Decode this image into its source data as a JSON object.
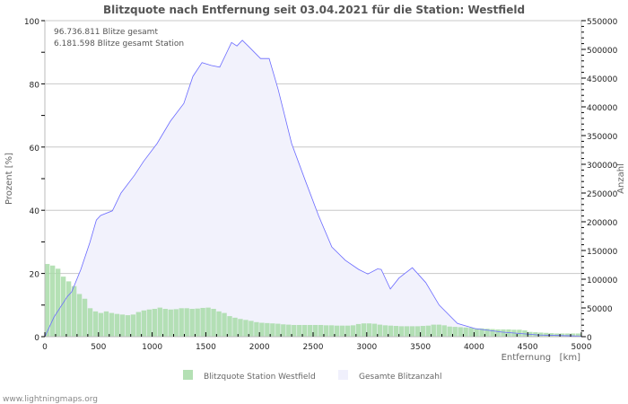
{
  "chart_data": {
    "type": "bar",
    "title": "Blitzquote nach Entfernung seit 03.04.2021 für die Station: Westfield",
    "xlabel": "Entfernung   [km]",
    "ylabel": "Prozent   [%]",
    "ylabel_right": "Anzahl",
    "xlim": [
      0,
      5000
    ],
    "ylim": [
      0,
      100
    ],
    "ylim_right": [
      0,
      550000
    ],
    "x_ticks": [
      "0",
      "500",
      "1000",
      "1500",
      "2000",
      "2500",
      "3000",
      "3500",
      "4000",
      "4500",
      "5000"
    ],
    "y_ticks": [
      "0",
      "20",
      "40",
      "60",
      "80",
      "100"
    ],
    "y_ticks_right": [
      "0",
      "50000",
      "100000",
      "150000",
      "200000",
      "250000",
      "300000",
      "350000",
      "400000",
      "450000",
      "500000",
      "550000"
    ],
    "grid": true,
    "annotations": [
      "96.736.811 Blitze gesamt",
      "6.181.598 Blitze gesamt Station"
    ],
    "legend": {
      "placement": "bottom",
      "entries": [
        "Blitzquote Station Westfield",
        "Gesamte Blitzanzahl"
      ]
    },
    "bin_km": 50,
    "series": [
      {
        "name": "Blitzquote Station Westfield",
        "axis": "left",
        "unit": "%",
        "color": "#a8dca8",
        "values": [
          23,
          22.5,
          21.5,
          19,
          17.5,
          16,
          13.5,
          12,
          9,
          8,
          7.5,
          8,
          7.5,
          7.2,
          7,
          6.8,
          7,
          7.8,
          8.3,
          8.6,
          8.8,
          9.2,
          8.8,
          8.6,
          8.7,
          9,
          9,
          8.8,
          8.9,
          9.1,
          9.2,
          8.8,
          8,
          7.5,
          6.5,
          6,
          5.6,
          5.3,
          5,
          4.6,
          4.4,
          4.3,
          4.2,
          4.1,
          3.9,
          3.8,
          3.7,
          3.7,
          3.7,
          3.7,
          3.7,
          3.7,
          3.6,
          3.6,
          3.5,
          3.5,
          3.5,
          3.6,
          4,
          4.2,
          4.2,
          4.1,
          3.8,
          3.6,
          3.5,
          3.4,
          3.3,
          3.3,
          3.3,
          3.3,
          3.4,
          3.5,
          3.8,
          3.8,
          3.6,
          3.2,
          3.1,
          3,
          2.9,
          2.8,
          2.6,
          2.6,
          2.5,
          2.4,
          2.3,
          2.3,
          2.3,
          2.2,
          2.2,
          2.0,
          1.5,
          1.4,
          1.3,
          1.2,
          1.1,
          1,
          1,
          1,
          1,
          1
        ]
      },
      {
        "name": "Gesamte Blitzanzahl",
        "axis": "right",
        "unit": "count",
        "color": "#6a6aff",
        "fill": "#f2f2fc",
        "x": [
          0,
          85,
          210,
          250,
          335,
          420,
          480,
          520,
          630,
          710,
          835,
          920,
          1045,
          1170,
          1295,
          1380,
          1465,
          1550,
          1630,
          1740,
          1790,
          1840,
          1900,
          2010,
          2090,
          2175,
          2300,
          2425,
          2550,
          2675,
          2800,
          2925,
          3010,
          3100,
          3135,
          3220,
          3300,
          3425,
          3550,
          3675,
          3845,
          4010,
          4260,
          4600,
          5000
        ],
        "values": [
          0,
          34000,
          70000,
          78000,
          117000,
          164000,
          203000,
          211000,
          219000,
          250000,
          281000,
          305000,
          336000,
          375000,
          406000,
          453000,
          477000,
          472000,
          469000,
          512000,
          506000,
          516000,
          505000,
          484000,
          484000,
          430000,
          336000,
          273000,
          211000,
          156000,
          133000,
          117000,
          109000,
          118000,
          117000,
          83000,
          102000,
          120000,
          94000,
          55000,
          23000,
          14000,
          8000,
          3000,
          1000
        ]
      }
    ]
  },
  "footer": {
    "watermark": "www.lightningmaps.org"
  }
}
